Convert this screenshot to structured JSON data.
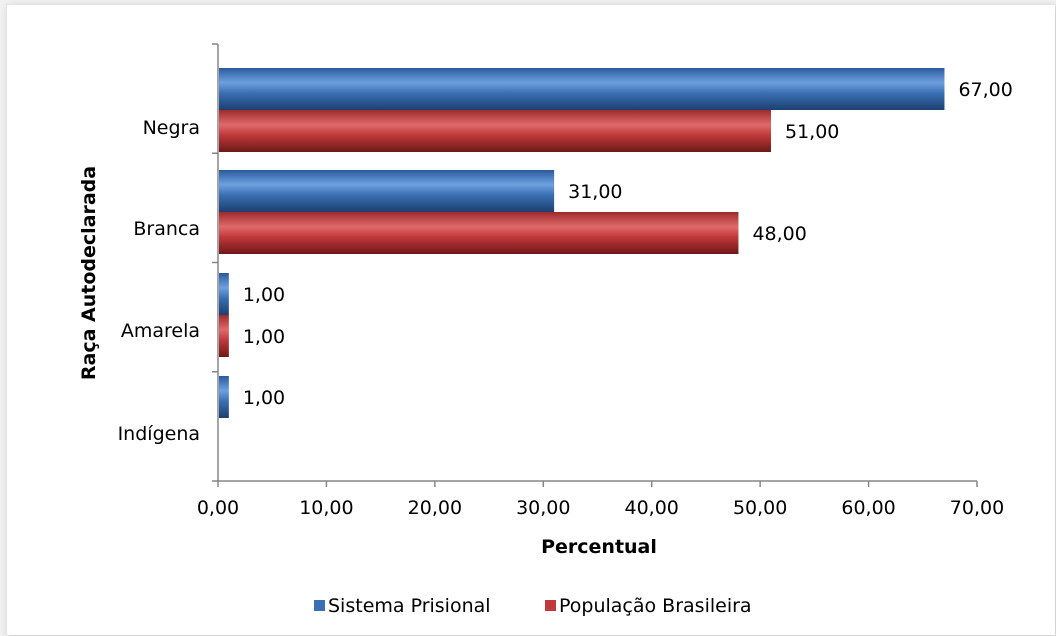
{
  "chart_data": {
    "type": "bar",
    "orientation": "horizontal",
    "categories": [
      "Negra",
      "Branca",
      "Amarela",
      "Indígena"
    ],
    "series": [
      {
        "name": "Sistema Prisional",
        "values": [
          67,
          31,
          1,
          1
        ],
        "labels": [
          "67,00",
          "31,00",
          "1,00",
          "1,00"
        ],
        "color": "#3a6fb3"
      },
      {
        "name": "População Brasileira",
        "values": [
          51,
          48,
          1,
          null
        ],
        "labels": [
          "51,00",
          "48,00",
          "1,00",
          null
        ],
        "color": "#c0393b"
      }
    ],
    "xlabel": "Percentual",
    "ylabel": "Raça Autodeclarada",
    "xlim": [
      0,
      70
    ],
    "xticks": [
      {
        "value": 0,
        "label": "0,00"
      },
      {
        "value": 10,
        "label": "10,00"
      },
      {
        "value": 20,
        "label": "20,00"
      },
      {
        "value": 30,
        "label": "30,00"
      },
      {
        "value": 40,
        "label": "40,00"
      },
      {
        "value": 50,
        "label": "50,00"
      },
      {
        "value": 60,
        "label": "60,00"
      },
      {
        "value": 70,
        "label": "70,00"
      }
    ],
    "grid": false,
    "legend_position": "bottom"
  }
}
